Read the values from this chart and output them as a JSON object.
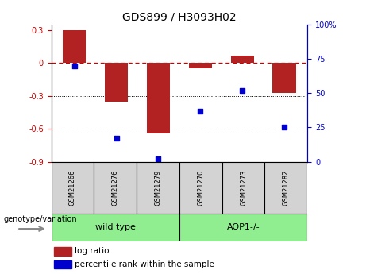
{
  "title": "GDS899 / H3093H02",
  "categories": [
    "GSM21266",
    "GSM21276",
    "GSM21279",
    "GSM21270",
    "GSM21273",
    "GSM21282"
  ],
  "log_ratios": [
    0.3,
    -0.35,
    -0.64,
    -0.05,
    0.07,
    -0.27
  ],
  "percentile_ranks": [
    70,
    17,
    2,
    37,
    52,
    25
  ],
  "bar_color": "#B22222",
  "dot_color": "#0000CC",
  "ylim_left": [
    -0.9,
    0.35
  ],
  "ylim_right": [
    0,
    100
  ],
  "yticks_left": [
    0.3,
    0.0,
    -0.3,
    -0.6,
    -0.9
  ],
  "yticks_right": [
    100,
    75,
    50,
    25,
    0
  ],
  "group_labels": [
    "wild type",
    "AQP1-/-"
  ],
  "group_spans_wt": [
    0,
    2
  ],
  "group_spans_aqp": [
    3,
    5
  ],
  "group_color": "#90EE90",
  "sample_box_color": "#D3D3D3",
  "header_label": "genotype/variation",
  "legend_bar_label": "log ratio",
  "legend_dot_label": "percentile rank within the sample",
  "background_color": "#FFFFFF",
  "grid_dotted_values": [
    -0.3,
    -0.6
  ],
  "dashed_zero_color": "#CC0000",
  "bar_width": 0.55,
  "title_fontsize": 10,
  "tick_fontsize": 7,
  "label_fontsize": 7,
  "legend_fontsize": 7.5
}
